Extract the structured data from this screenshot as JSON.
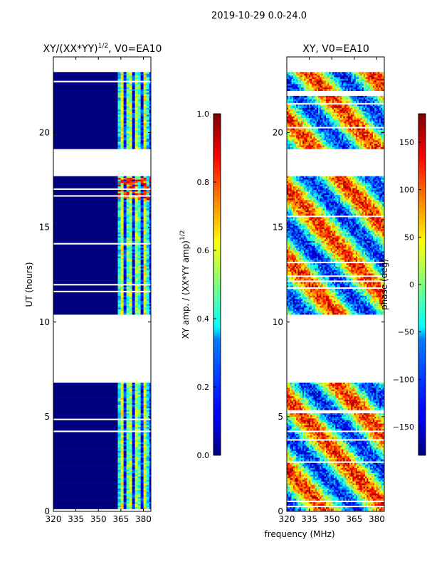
{
  "suptitle": "2019-10-29 0.0-24.0",
  "chart_data": [
    {
      "type": "heatmap",
      "title": "XY/(XX*YY)",
      "title_sup": "1/2",
      "title_suffix": ", V0=EA10",
      "xlabel": "",
      "ylabel": "UT (hours)",
      "xlim": [
        320,
        385
      ],
      "ylim": [
        0,
        24
      ],
      "xticks": [
        320,
        335,
        350,
        365,
        380
      ],
      "yticks": [
        0,
        5,
        10,
        15,
        20
      ],
      "active_band_mhz": [
        363,
        384
      ],
      "data_ut_ranges": [
        [
          0.1,
          6.8
        ],
        [
          10.4,
          17.7
        ],
        [
          19.2,
          23.2
        ]
      ],
      "colorbar": {
        "label": "XY amp. / (XX*YY amp)",
        "label_sup": "1/2",
        "range": [
          0,
          1
        ],
        "ticks": [
          "0.0",
          "0.2",
          "0.4",
          "0.6",
          "0.8",
          "1.0"
        ],
        "colormap": "jet"
      }
    },
    {
      "type": "heatmap",
      "title": "XY, V0=EA10",
      "xlabel": "frequency (MHz)",
      "ylabel": "",
      "xlim": [
        320,
        385
      ],
      "ylim": [
        0,
        24
      ],
      "xticks": [
        320,
        335,
        350,
        365,
        380
      ],
      "yticks": [
        0,
        5,
        10,
        15,
        20
      ],
      "data_ut_ranges": [
        [
          0.1,
          6.8
        ],
        [
          10.4,
          17.7
        ],
        [
          19.2,
          23.2
        ]
      ],
      "colorbar": {
        "label": "phase (deg)",
        "range": [
          -180,
          180
        ],
        "ticks": [
          "−150",
          "−100",
          "−50",
          "0",
          "50",
          "100",
          "150"
        ],
        "colormap": "jet"
      }
    }
  ]
}
